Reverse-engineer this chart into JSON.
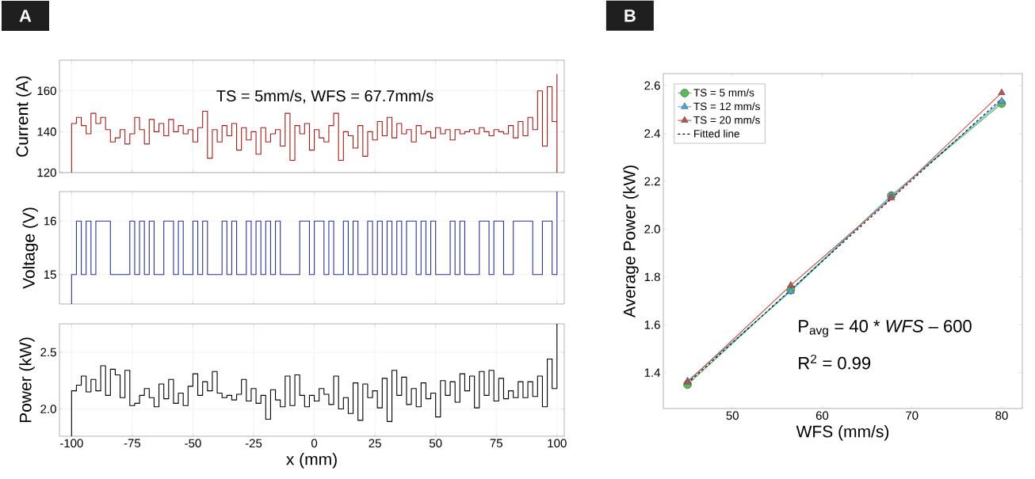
{
  "chart_data": [
    {
      "type": "step",
      "ylabel": "Current (A)",
      "color": "#a11d1d",
      "grid": true,
      "tick_labels": "y",
      "annotations": [
        "A",
        "TS = 5mm/s, WFS = 67.7mm/s"
      ],
      "xlim": [
        -105,
        103
      ],
      "ylim": [
        120,
        175
      ],
      "xticks": [
        -100,
        -75,
        -50,
        -25,
        0,
        25,
        50,
        75,
        100
      ],
      "yticks": [
        120,
        140,
        160
      ],
      "x": [
        -100,
        -100,
        -98,
        -96,
        -94,
        -92,
        -90,
        -88,
        -86,
        -84,
        -82,
        -80,
        -78,
        -76,
        -74,
        -72,
        -70,
        -68,
        -66,
        -64,
        -62,
        -60,
        -58,
        -56,
        -54,
        -52,
        -50,
        -48,
        -46,
        -44,
        -42,
        -40,
        -38,
        -36,
        -34,
        -32,
        -30,
        -28,
        -26,
        -24,
        -22,
        -20,
        -18,
        -16,
        -14,
        -12,
        -10,
        -8,
        -6,
        -4,
        -2,
        0,
        2,
        4,
        6,
        8,
        10,
        12,
        14,
        16,
        18,
        20,
        22,
        24,
        26,
        28,
        30,
        32,
        34,
        36,
        38,
        40,
        42,
        44,
        46,
        48,
        50,
        52,
        54,
        56,
        58,
        60,
        62,
        64,
        66,
        68,
        70,
        72,
        74,
        76,
        78,
        80,
        82,
        84,
        86,
        88,
        90,
        92,
        94,
        96,
        98,
        100,
        100
      ],
      "values": [
        120,
        144,
        147,
        143,
        139,
        149,
        144,
        147,
        141,
        135,
        137,
        141,
        134,
        139,
        147,
        141,
        134,
        146,
        140,
        144,
        138,
        146,
        140,
        143,
        139,
        141,
        135,
        142,
        150,
        127,
        141,
        135,
        143,
        138,
        144,
        131,
        142,
        136,
        140,
        129,
        142,
        135,
        139,
        141,
        133,
        149,
        126,
        143,
        139,
        144,
        131,
        141,
        137,
        135,
        143,
        149,
        126,
        140,
        138,
        132,
        143,
        128,
        140,
        136,
        145,
        138,
        147,
        137,
        144,
        139,
        141,
        135,
        143,
        139,
        140,
        137,
        142,
        139,
        141,
        136,
        141,
        139,
        140,
        141,
        139,
        142,
        140,
        138,
        141,
        140,
        139,
        143,
        137,
        145,
        138,
        147,
        141,
        160,
        133,
        162,
        145,
        168,
        120
      ]
    },
    {
      "type": "step",
      "ylabel": "Voltage (V)",
      "color": "#2b3590",
      "grid": true,
      "tick_labels": "y",
      "xlim": [
        -105,
        103
      ],
      "ylim": [
        14.45,
        16.55
      ],
      "xticks": [
        -100,
        -75,
        -50,
        -25,
        0,
        25,
        50,
        75,
        100
      ],
      "yticks": [
        15,
        16
      ],
      "x": [
        -100,
        -100,
        -98,
        -96,
        -94,
        -92,
        -90,
        -88,
        -86,
        -84,
        -82,
        -80,
        -78,
        -76,
        -74,
        -72,
        -70,
        -68,
        -66,
        -64,
        -62,
        -60,
        -58,
        -56,
        -54,
        -52,
        -50,
        -48,
        -46,
        -44,
        -42,
        -40,
        -38,
        -36,
        -34,
        -32,
        -30,
        -28,
        -26,
        -24,
        -22,
        -20,
        -18,
        -16,
        -14,
        -12,
        -10,
        -8,
        -6,
        -4,
        -2,
        0,
        2,
        4,
        6,
        8,
        10,
        12,
        14,
        16,
        18,
        20,
        22,
        24,
        26,
        28,
        30,
        32,
        34,
        36,
        38,
        40,
        42,
        44,
        46,
        48,
        50,
        52,
        54,
        56,
        58,
        60,
        62,
        64,
        66,
        68,
        70,
        72,
        74,
        76,
        78,
        80,
        82,
        84,
        86,
        88,
        90,
        92,
        94,
        96,
        98,
        100,
        100
      ],
      "values": [
        14.45,
        15,
        16,
        15,
        16,
        15,
        16,
        16,
        16,
        15,
        15,
        15,
        15,
        16,
        15,
        16,
        15,
        16,
        15,
        15,
        16,
        16,
        15,
        16,
        15,
        15,
        16,
        15,
        16,
        15,
        15,
        15,
        16,
        15,
        16,
        15,
        15,
        16,
        15,
        16,
        15,
        16,
        15,
        16,
        15,
        15,
        15,
        15,
        16,
        16,
        15,
        16,
        16,
        15,
        16,
        15,
        15,
        16,
        15,
        16,
        15,
        15,
        16,
        15,
        16,
        15,
        16,
        15,
        16,
        15,
        16,
        16,
        15,
        16,
        15,
        16,
        15,
        15,
        15,
        16,
        15,
        16,
        15,
        15,
        15,
        16,
        16,
        15,
        16,
        16,
        15,
        15,
        16,
        16,
        16,
        16,
        15,
        15,
        16,
        16,
        15,
        15,
        16.55
      ]
    },
    {
      "type": "step",
      "ylabel": "Power (kW)",
      "xlabel": "x (mm)",
      "color": "#000000",
      "grid": true,
      "xlim": [
        -105,
        103
      ],
      "ylim": [
        1.76,
        2.75
      ],
      "xticks": [
        -100,
        -75,
        -50,
        -25,
        0,
        25,
        50,
        75,
        100
      ],
      "yticks": [
        {
          "value": 2,
          "label": "2.0"
        },
        2.5
      ],
      "x": [
        -100,
        -100,
        -98,
        -96,
        -94,
        -92,
        -90,
        -88,
        -86,
        -84,
        -82,
        -80,
        -78,
        -76,
        -74,
        -72,
        -70,
        -68,
        -66,
        -64,
        -62,
        -60,
        -58,
        -56,
        -54,
        -52,
        -50,
        -48,
        -46,
        -44,
        -42,
        -40,
        -38,
        -36,
        -34,
        -32,
        -30,
        -28,
        -26,
        -24,
        -22,
        -20,
        -18,
        -16,
        -14,
        -12,
        -10,
        -8,
        -6,
        -4,
        -2,
        0,
        2,
        4,
        6,
        8,
        10,
        12,
        14,
        16,
        18,
        20,
        22,
        24,
        26,
        28,
        30,
        32,
        34,
        36,
        38,
        40,
        42,
        44,
        46,
        48,
        50,
        52,
        54,
        56,
        58,
        60,
        62,
        64,
        66,
        68,
        70,
        72,
        74,
        76,
        78,
        80,
        82,
        84,
        86,
        88,
        90,
        92,
        94,
        96,
        98,
        100,
        100
      ],
      "values": [
        1.76,
        2.16,
        2.21,
        2.29,
        2.15,
        2.26,
        2.16,
        2.38,
        2.12,
        2.35,
        2.3,
        2.1,
        2.34,
        2.03,
        2.05,
        2.12,
        2.18,
        2.1,
        2.02,
        2.22,
        2.09,
        2.26,
        2.05,
        2.14,
        2.03,
        2.2,
        2.31,
        2.12,
        2.24,
        2.16,
        2.33,
        2.14,
        2.1,
        2.12,
        2.08,
        2.13,
        2.26,
        2.07,
        2.18,
        2.05,
        2.12,
        1.91,
        2.17,
        2.08,
        2.02,
        2.29,
        2.03,
        2.3,
        2.12,
        2.02,
        2.12,
        2.07,
        2.18,
        2.13,
        2.04,
        2.29,
        2,
        2.1,
        1.96,
        2.23,
        1.9,
        2.22,
        2.1,
        2.16,
        2.01,
        2.27,
        1.89,
        2.34,
        2.12,
        2.28,
        2.04,
        2.18,
        2.02,
        2.23,
        2.09,
        2.14,
        1.93,
        2.25,
        2.12,
        2.24,
        2.06,
        2.31,
        2.16,
        2.29,
        2.01,
        2.33,
        2.12,
        2.34,
        2.07,
        2.27,
        2.09,
        2.16,
        2.1,
        2.24,
        2.1,
        2.24,
        2.11,
        2.29,
        2.02,
        2.44,
        2.18,
        2.18,
        2.75
      ]
    },
    {
      "type": "line",
      "xlabel": "WFS (mm/s)",
      "ylabel": "Average Power (kW)",
      "legend": "top left",
      "annotations": [
        "B",
        "P$_{avg}$ = 40 * *WFS* – 600",
        "R$^{2}$ = 0.99"
      ],
      "xlim": [
        42.3,
        82.3
      ],
      "ylim": [
        1.25,
        2.65
      ],
      "xticks": [
        50,
        60,
        70,
        80
      ],
      "yticks": [
        1.4,
        1.6,
        1.8,
        {
          "value": 2,
          "label": "2.0"
        },
        2.2,
        2.4,
        2.6
      ],
      "x": [
        45,
        56.5,
        67.7,
        80
      ],
      "series": [
        {
          "name": "TS = 5 mm/s",
          "color": "#5cb85c",
          "marker": "circle",
          "values": [
            1.35,
            1.745,
            2.14,
            2.525
          ]
        },
        {
          "name": "TS = 12 mm/s",
          "color": "#4da6e8",
          "marker": "triangle",
          "values": [
            1.365,
            1.74,
            2.14,
            2.535
          ]
        },
        {
          "name": "TS = 20 mm/s",
          "color": "#c0504d",
          "marker": "triangle",
          "values": [
            1.36,
            1.765,
            2.13,
            2.57
          ]
        },
        {
          "name": "Fitted line",
          "color": "#000000",
          "line_style": "dashed",
          "x": [
            45,
            80
          ],
          "values": [
            1.355,
            2.545
          ]
        }
      ]
    }
  ]
}
